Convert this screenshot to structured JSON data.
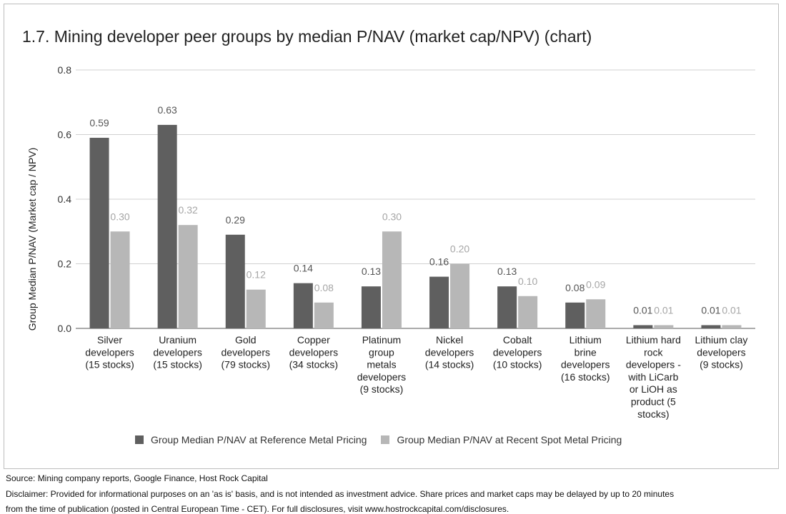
{
  "chart_data": {
    "type": "bar",
    "title": "1.7. Mining developer peer groups by median P/NAV (market cap/NPV) (chart)",
    "ylabel": "Group Median P/NAV (Market cap / NPV)",
    "xlabel": "",
    "ylim": [
      0,
      0.8
    ],
    "yticks": [
      "0.0",
      "0.2",
      "0.4",
      "0.6",
      "0.8"
    ],
    "grid": true,
    "legend_position": "bottom",
    "categories": [
      [
        "Silver",
        "developers",
        "(15 stocks)"
      ],
      [
        "Uranium",
        "developers",
        "(15 stocks)"
      ],
      [
        "Gold",
        "developers",
        "(79 stocks)"
      ],
      [
        "Copper",
        "developers",
        "(34 stocks)"
      ],
      [
        "Platinum",
        "group",
        "metals",
        "developers",
        "(9 stocks)"
      ],
      [
        "Nickel",
        "developers",
        "(14 stocks)"
      ],
      [
        "Cobalt",
        "developers",
        "(10 stocks)"
      ],
      [
        "Lithium",
        "brine",
        "developers",
        "(16 stocks)"
      ],
      [
        "Lithium hard",
        "rock",
        "developers -",
        "with LiCarb",
        "or LiOH as",
        "product (5",
        "stocks)"
      ],
      [
        "Lithium clay",
        "developers",
        "(9 stocks)"
      ]
    ],
    "series": [
      {
        "name": "Group Median P/NAV at Reference Metal Pricing",
        "color": "#5f5f5f",
        "label_color": "#555555",
        "values": [
          0.59,
          0.63,
          0.29,
          0.14,
          0.13,
          0.16,
          0.13,
          0.08,
          0.01,
          0.01
        ],
        "labels": [
          "0.59",
          "0.63",
          "0.29",
          "0.14",
          "0.13",
          "0.16",
          "0.13",
          "0.08",
          "0.01",
          "0.01"
        ]
      },
      {
        "name": "Group Median P/NAV at Recent Spot Metal Pricing",
        "color": "#b7b7b7",
        "label_color": "#a6a6a6",
        "values": [
          0.3,
          0.32,
          0.12,
          0.08,
          0.3,
          0.2,
          0.1,
          0.09,
          0.01,
          0.01
        ],
        "labels": [
          "0.30",
          "0.32",
          "0.12",
          "0.08",
          "0.30",
          "0.20",
          "0.10",
          "0.09",
          "0.01",
          "0.01"
        ]
      }
    ]
  },
  "footer": {
    "source": "Source: Mining company reports, Google Finance, Host Rock Capital",
    "disclaimer_line1": "Disclaimer: Provided for informational purposes on an 'as is' basis, and is not intended as investment advice. Share prices and market caps may be delayed by up to 20 minutes",
    "disclaimer_line2": "from the time of publication (posted in Central European Time - CET). For full disclosures, visit www.hostrockcapital.com/disclosures."
  }
}
